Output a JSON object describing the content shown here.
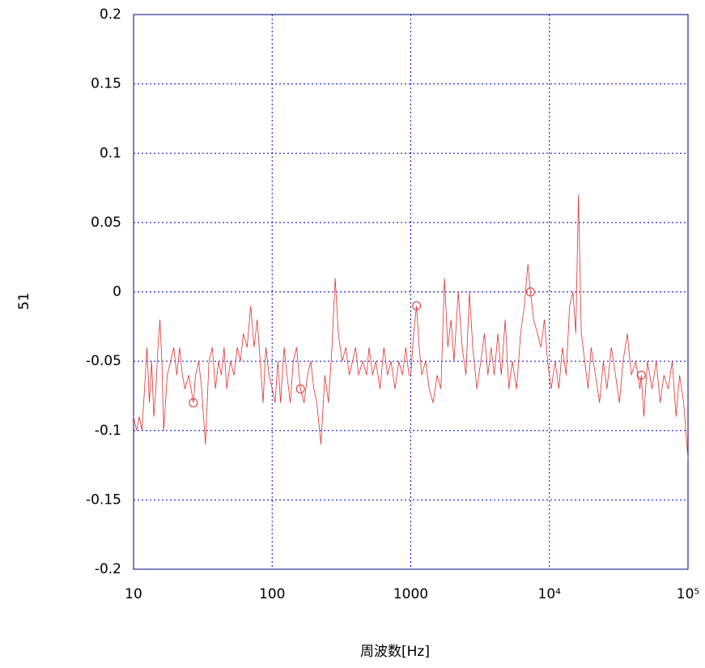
{
  "chart_data": {
    "type": "line",
    "xlabel": "周波数[Hz]",
    "ylabel": "51",
    "xscale": "log",
    "grid": true,
    "xlim": [
      10,
      100000
    ],
    "ylim": [
      -0.2,
      0.2
    ],
    "xticks": [
      10,
      100,
      1000,
      {
        "value": 10000,
        "label": "10⁴"
      },
      {
        "value": 100000,
        "label": "10⁵"
      }
    ],
    "yticks": [
      0.2,
      0.15,
      0.1,
      0.05,
      0,
      -0.05,
      -0.1,
      -0.15,
      -0.2
    ],
    "series": [
      {
        "color": "#e03030",
        "marker": "none",
        "x": [
          10,
          10.5,
          11,
          11.5,
          12,
          12.5,
          13,
          13.5,
          14,
          14.5,
          15,
          15.5,
          16,
          16.5,
          17.5,
          18.5,
          19.5,
          20.5,
          21.5,
          22.5,
          23.5,
          25,
          26,
          27,
          28,
          29.5,
          31,
          33,
          35,
          37,
          39,
          41,
          43,
          45,
          47,
          50,
          53,
          56,
          59,
          62,
          66,
          70,
          74,
          78,
          82,
          86,
          90,
          95,
          100,
          105,
          110,
          115,
          122,
          128,
          135,
          142,
          150,
          160,
          170,
          180,
          190,
          200,
          210,
          225,
          240,
          255,
          270,
          285,
          300,
          320,
          340,
          360,
          380,
          400,
          420,
          450,
          480,
          500,
          530,
          560,
          600,
          640,
          680,
          720,
          770,
          820,
          870,
          920,
          970,
          1000,
          1050,
          1100,
          1150,
          1200,
          1280,
          1360,
          1450,
          1550,
          1650,
          1750,
          1850,
          1950,
          2050,
          2200,
          2350,
          2500,
          2650,
          2800,
          3000,
          3200,
          3400,
          3600,
          3800,
          4000,
          4250,
          4500,
          4800,
          5100,
          5400,
          5800,
          6200,
          6600,
          7000,
          7300,
          7700,
          8200,
          8700,
          9200,
          9700,
          10300,
          11000,
          11700,
          12400,
          13200,
          14000,
          14800,
          15500,
          16200,
          17000,
          18000,
          19000,
          20000,
          21500,
          23000,
          24500,
          26000,
          28000,
          30000,
          32000,
          34000,
          36500,
          39000,
          42000,
          45000,
          46000,
          48000,
          51000,
          55000,
          59000,
          63000,
          67000,
          72000,
          77000,
          82000,
          87000,
          93000,
          100000
        ],
        "values": [
          -0.09,
          -0.1,
          -0.09,
          -0.1,
          -0.07,
          -0.04,
          -0.08,
          -0.05,
          -0.09,
          -0.07,
          -0.04,
          -0.02,
          -0.05,
          -0.1,
          -0.06,
          -0.05,
          -0.04,
          -0.06,
          -0.04,
          -0.06,
          -0.07,
          -0.06,
          -0.07,
          -0.08,
          -0.06,
          -0.05,
          -0.07,
          -0.11,
          -0.05,
          -0.04,
          -0.07,
          -0.05,
          -0.06,
          -0.04,
          -0.07,
          -0.05,
          -0.06,
          -0.04,
          -0.05,
          -0.03,
          -0.04,
          -0.01,
          -0.04,
          -0.02,
          -0.05,
          -0.08,
          -0.04,
          -0.06,
          -0.07,
          -0.08,
          -0.05,
          -0.08,
          -0.04,
          -0.06,
          -0.08,
          -0.05,
          -0.04,
          -0.07,
          -0.08,
          -0.06,
          -0.05,
          -0.07,
          -0.08,
          -0.11,
          -0.06,
          -0.08,
          -0.04,
          0.01,
          -0.03,
          -0.05,
          -0.04,
          -0.06,
          -0.05,
          -0.04,
          -0.06,
          -0.05,
          -0.06,
          -0.04,
          -0.06,
          -0.05,
          -0.07,
          -0.04,
          -0.06,
          -0.05,
          -0.07,
          -0.05,
          -0.06,
          -0.04,
          -0.06,
          -0.06,
          -0.03,
          -0.01,
          -0.04,
          -0.06,
          -0.05,
          -0.07,
          -0.08,
          -0.06,
          -0.07,
          0.01,
          -0.04,
          -0.02,
          -0.05,
          0,
          -0.04,
          -0.06,
          0,
          -0.04,
          -0.07,
          -0.05,
          -0.03,
          -0.06,
          -0.04,
          -0.06,
          -0.03,
          -0.06,
          -0.02,
          -0.07,
          -0.05,
          -0.07,
          -0.03,
          -0.01,
          0.02,
          0,
          -0.02,
          -0.03,
          -0.04,
          -0.02,
          -0.05,
          -0.07,
          -0.05,
          -0.07,
          -0.04,
          -0.06,
          -0.01,
          0,
          -0.03,
          0.07,
          -0.03,
          -0.05,
          -0.07,
          -0.04,
          -0.06,
          -0.08,
          -0.05,
          -0.07,
          -0.04,
          -0.06,
          -0.08,
          -0.05,
          -0.03,
          -0.06,
          -0.05,
          -0.07,
          -0.06,
          -0.09,
          -0.05,
          -0.07,
          -0.05,
          -0.08,
          -0.06,
          -0.07,
          -0.05,
          -0.09,
          -0.06,
          -0.08,
          -0.12
        ]
      },
      {
        "color": "#e03030",
        "marker": "circle",
        "x": [
          27,
          160,
          1100,
          7300,
          46000
        ],
        "values": [
          -0.08,
          -0.07,
          -0.01,
          0,
          -0.06
        ]
      }
    ]
  }
}
